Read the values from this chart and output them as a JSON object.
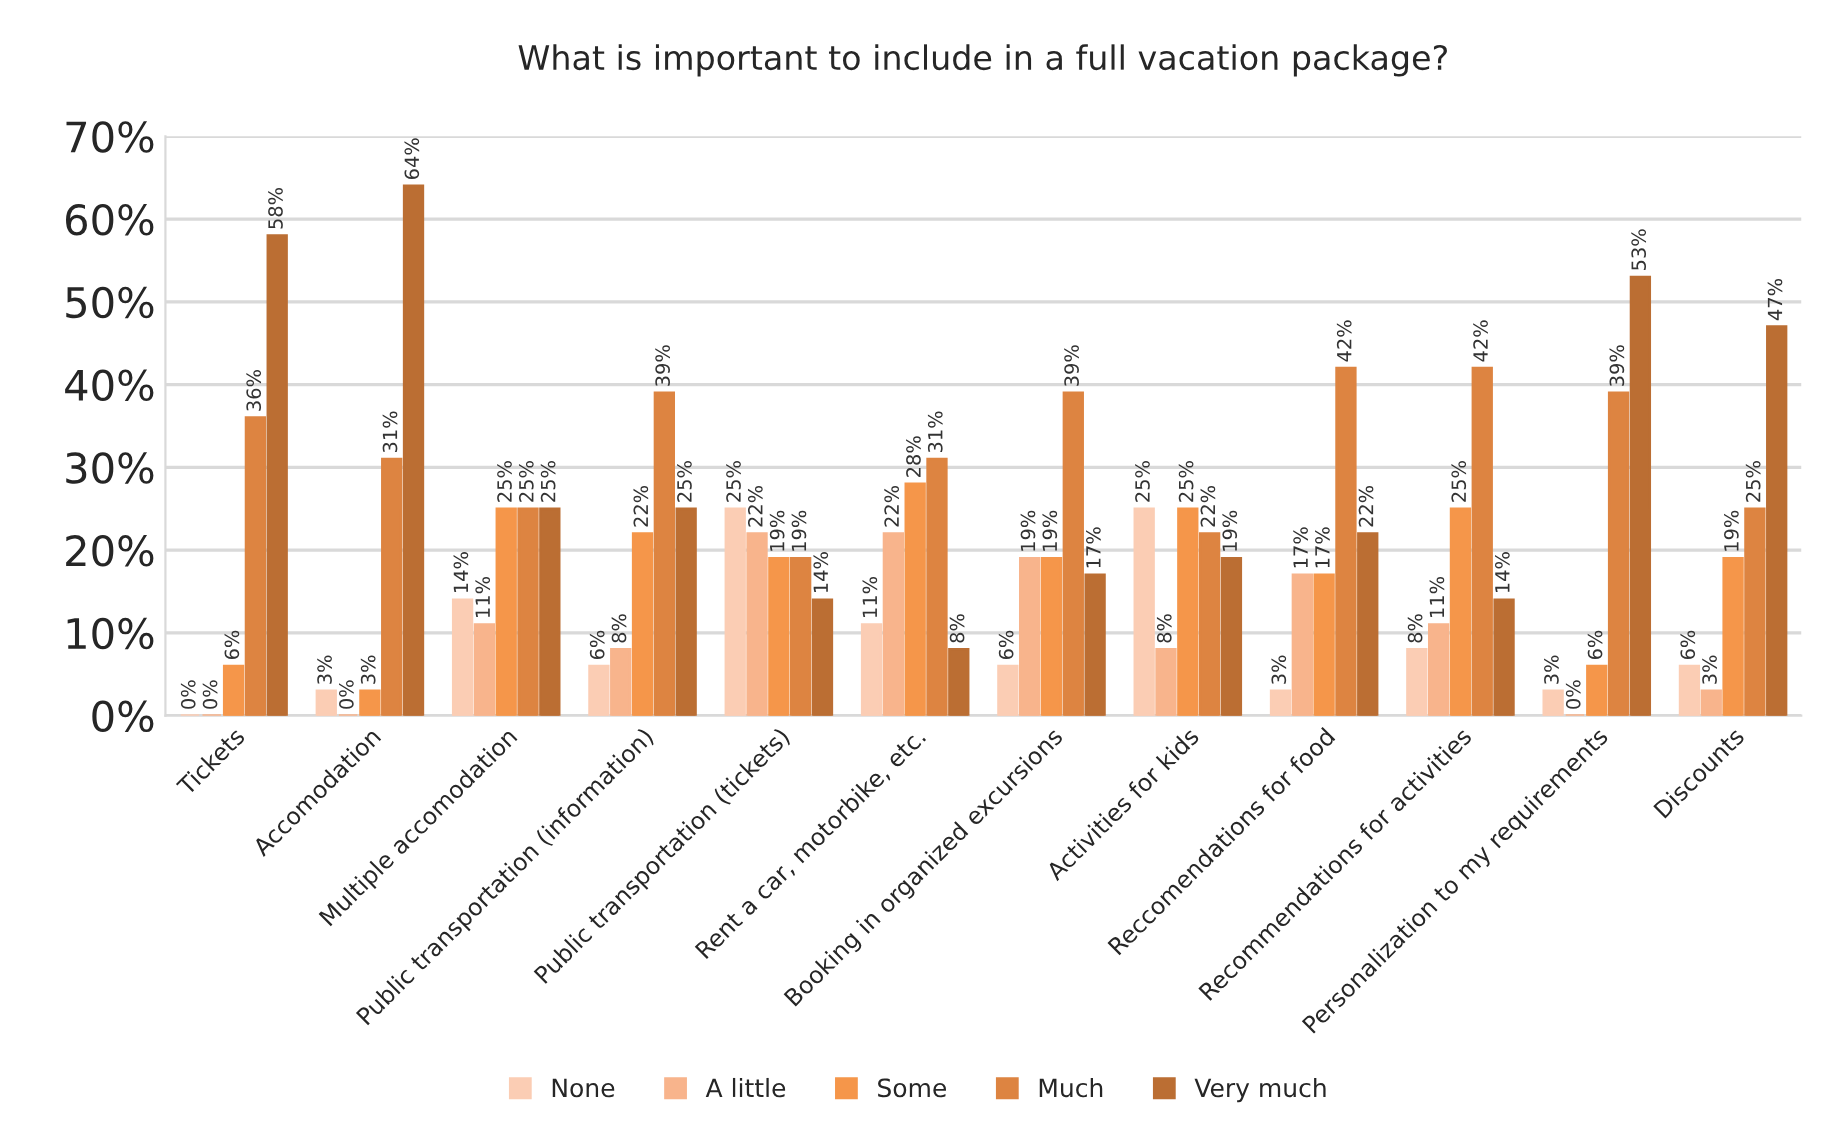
{
  "chart_data": {
    "type": "bar",
    "title": "What is important to include in a full vacation package?",
    "categories": [
      "Tickets",
      "Accomodation",
      "Multiple accomodation",
      "Public transportation (information)",
      "Public transportation (tickets)",
      "Rent a car, motorbike, etc.",
      "Booking in organized excursions",
      "Activities for kids",
      "Reccomendations for food",
      "Recommendations for activities",
      "Personalization to my requirements",
      "Discounts"
    ],
    "series": [
      {
        "name": "None",
        "color": "#fbcdb4",
        "values": [
          0,
          3,
          14,
          6,
          25,
          11,
          6,
          25,
          3,
          8,
          3,
          6
        ],
        "value_labels": [
          "0%",
          "3%",
          "14%",
          "6%",
          "25%",
          "11%",
          "6%",
          "25%",
          "3%",
          "8%",
          "3%",
          "6%"
        ]
      },
      {
        "name": "A little",
        "color": "#f8b48c",
        "values": [
          0,
          0,
          11,
          8,
          22,
          22,
          19,
          8,
          17,
          11,
          0,
          3
        ],
        "value_labels": [
          "0%",
          "0%",
          "11%",
          "8%",
          "22%",
          "22%",
          "19%",
          "8%",
          "17%",
          "11%",
          "0%",
          "3%"
        ]
      },
      {
        "name": "Some",
        "color": "#f5964a",
        "values": [
          6,
          3,
          25,
          22,
          19,
          28,
          19,
          25,
          17,
          25,
          6,
          19
        ],
        "value_labels": [
          "6%",
          "3%",
          "25%",
          "22%",
          "19%",
          "28%",
          "19%",
          "25%",
          "17%",
          "25%",
          "6%",
          "19%"
        ]
      },
      {
        "name": "Much",
        "color": "#dd8441",
        "values": [
          36,
          31,
          25,
          39,
          19,
          31,
          39,
          22,
          42,
          42,
          39,
          25
        ],
        "value_labels": [
          "36%",
          "31%",
          "25%",
          "39%",
          "19%",
          "31%",
          "39%",
          "22%",
          "42%",
          "42%",
          "39%",
          "25%"
        ]
      },
      {
        "name": "Very much",
        "color": "#bb6e33",
        "values": [
          58,
          64,
          25,
          25,
          14,
          8,
          17,
          19,
          22,
          14,
          53,
          47
        ],
        "value_labels": [
          "58%",
          "64%",
          "25%",
          "25%",
          "14%",
          "8%",
          "17%",
          "19%",
          "22%",
          "14%",
          "53%",
          "47%"
        ]
      }
    ],
    "ylim": [
      0,
      70
    ],
    "yticks": [
      {
        "value": 0,
        "label": "0%"
      },
      {
        "value": 10,
        "label": "10%"
      },
      {
        "value": 20,
        "label": "20%"
      },
      {
        "value": 30,
        "label": "30%"
      },
      {
        "value": 40,
        "label": "40%"
      },
      {
        "value": 50,
        "label": "50%"
      },
      {
        "value": 60,
        "label": "60%"
      },
      {
        "value": 70,
        "label": "70%"
      }
    ],
    "grid": "y",
    "legend": "bottom"
  }
}
